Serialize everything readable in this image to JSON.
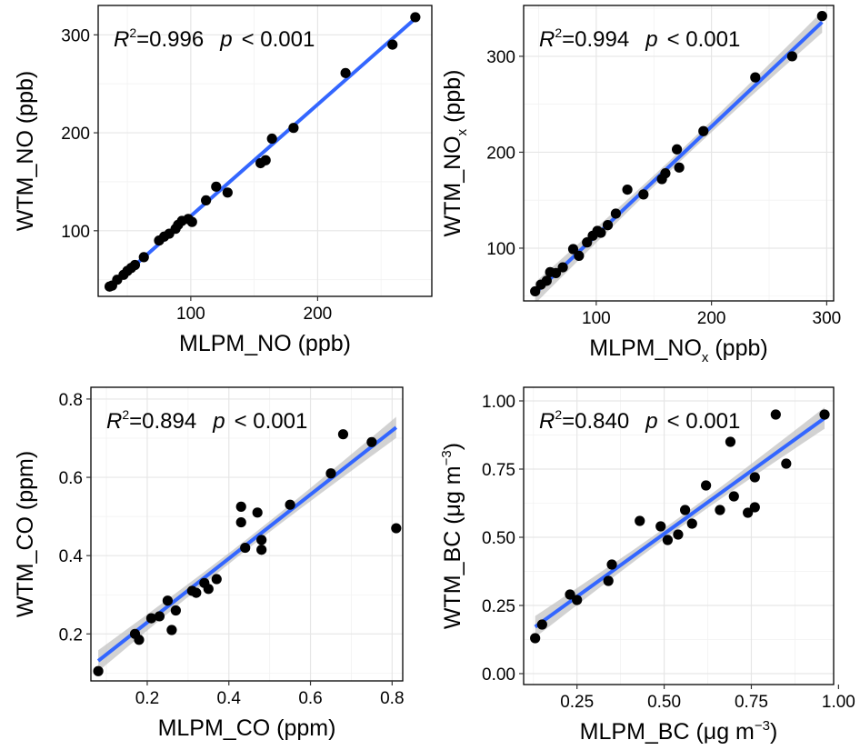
{
  "chart_data": [
    {
      "type": "scatter",
      "xlabel": "MLPM_NO (ppb)",
      "ylabel": "WTM_NO (ppb)",
      "xlim": [
        27,
        290
      ],
      "ylim": [
        33,
        330
      ],
      "xticks": [
        100,
        200
      ],
      "yticks": [
        100,
        200,
        300
      ],
      "tick_labels_x": [
        "100",
        "200"
      ],
      "tick_labels_y": [
        "100",
        "200",
        "300"
      ],
      "annotation": {
        "r2_label": "R",
        "r2_value": "=0.996",
        "p_label": "p",
        "p_value": "< 0.001"
      },
      "fit": {
        "slope": 1.139,
        "intercept": 1.1,
        "ci": false
      },
      "x": [
        36,
        38,
        42,
        47,
        50,
        53,
        56,
        63,
        75,
        79,
        83,
        88,
        90,
        93,
        98,
        101,
        112,
        120,
        129,
        155,
        159,
        164,
        181,
        222,
        259,
        277
      ],
      "y": [
        43,
        44,
        50,
        55,
        59,
        62,
        65,
        73,
        90,
        94,
        97,
        102,
        106,
        110,
        112,
        109,
        131,
        145,
        139,
        169,
        172,
        194,
        205,
        261,
        290,
        318
      ]
    },
    {
      "type": "scatter",
      "xlabel": "MLPM_NO",
      "xlabel_sub": "x",
      "xlabel_unit": " (ppb)",
      "ylabel": "WTM_NO",
      "ylabel_sub": "x",
      "ylabel_unit": " (ppb)",
      "xlim": [
        37,
        306
      ],
      "ylim": [
        45,
        353
      ],
      "xticks": [
        100,
        200,
        300
      ],
      "yticks": [
        100,
        200,
        300
      ],
      "tick_labels_x": [
        "100",
        "200",
        "300"
      ],
      "tick_labels_y": [
        "100",
        "200",
        "300"
      ],
      "annotation": {
        "r2_label": "R",
        "r2_value": "=0.994",
        "p_label": "p",
        "p_value": "< 0.001"
      },
      "fit": {
        "slope": 1.134,
        "intercept": 0.0,
        "ci": true
      },
      "x": [
        47,
        52,
        57,
        60,
        65,
        71,
        80,
        85,
        92,
        97,
        101,
        104,
        110,
        117,
        127,
        141,
        157,
        160,
        170,
        172,
        193,
        238,
        270,
        296
      ],
      "y": [
        55,
        62,
        66,
        75,
        74,
        80,
        99,
        92,
        106,
        113,
        118,
        116,
        124,
        136,
        161,
        156,
        172,
        178,
        203,
        184,
        222,
        278,
        300,
        342
      ]
    },
    {
      "type": "scatter",
      "xlabel": "MLPM_CO (ppm)",
      "ylabel": "WTM_CO (ppm)",
      "xlim": [
        0.062,
        0.826
      ],
      "ylim": [
        0.08,
        0.83
      ],
      "xticks": [
        0.2,
        0.4,
        0.6,
        0.8
      ],
      "yticks": [
        0.2,
        0.4,
        0.6,
        0.8
      ],
      "tick_labels_x": [
        "0.2",
        "0.4",
        "0.6",
        "0.8"
      ],
      "tick_labels_y": [
        "0.2",
        "0.4",
        "0.6",
        "0.8"
      ],
      "annotation": {
        "r2_label": "R",
        "r2_value": "=0.894",
        "p_label": "p",
        "p_value": "< 0.001"
      },
      "fit": {
        "slope": 0.8166,
        "intercept": 0.066,
        "ci": true
      },
      "x": [
        0.08,
        0.17,
        0.18,
        0.21,
        0.23,
        0.25,
        0.26,
        0.27,
        0.31,
        0.32,
        0.34,
        0.35,
        0.37,
        0.43,
        0.43,
        0.44,
        0.47,
        0.48,
        0.48,
        0.55,
        0.65,
        0.68,
        0.75,
        0.81
      ],
      "y": [
        0.105,
        0.2,
        0.185,
        0.24,
        0.245,
        0.285,
        0.21,
        0.26,
        0.31,
        0.305,
        0.33,
        0.315,
        0.34,
        0.525,
        0.485,
        0.42,
        0.51,
        0.415,
        0.44,
        0.53,
        0.61,
        0.71,
        0.69,
        0.47
      ]
    },
    {
      "type": "scatter",
      "xlabel": "MLPM_BC (μg m",
      "xlabel_sup": "−3",
      "xlabel_end": ")",
      "ylabel": "WTM_BC (μg m",
      "ylabel_sup": "−3",
      "ylabel_end": ")",
      "xlim": [
        0.097,
        0.986
      ],
      "ylim": [
        -0.04,
        1.05
      ],
      "xticks": [
        0.25,
        0.5,
        0.75,
        1.0
      ],
      "yticks": [
        0.0,
        0.25,
        0.5,
        0.75,
        1.0
      ],
      "tick_labels_x": [
        "0.25",
        "0.50",
        "0.75",
        "1.00"
      ],
      "tick_labels_y": [
        "0.00",
        "0.25",
        "0.50",
        "0.75",
        "1.00"
      ],
      "annotation": {
        "r2_label": "R",
        "r2_value": "=0.840",
        "p_label": "p",
        "p_value": "< 0.001"
      },
      "fit": {
        "slope": 0.922,
        "intercept": 0.052,
        "ci": true
      },
      "x": [
        0.13,
        0.15,
        0.23,
        0.25,
        0.34,
        0.35,
        0.43,
        0.49,
        0.51,
        0.54,
        0.56,
        0.58,
        0.62,
        0.66,
        0.69,
        0.7,
        0.74,
        0.76,
        0.76,
        0.82,
        0.85,
        0.96
      ],
      "y": [
        0.13,
        0.18,
        0.29,
        0.27,
        0.34,
        0.4,
        0.56,
        0.54,
        0.49,
        0.51,
        0.6,
        0.55,
        0.69,
        0.6,
        0.85,
        0.65,
        0.59,
        0.61,
        0.72,
        0.95,
        0.77,
        0.95
      ]
    }
  ]
}
